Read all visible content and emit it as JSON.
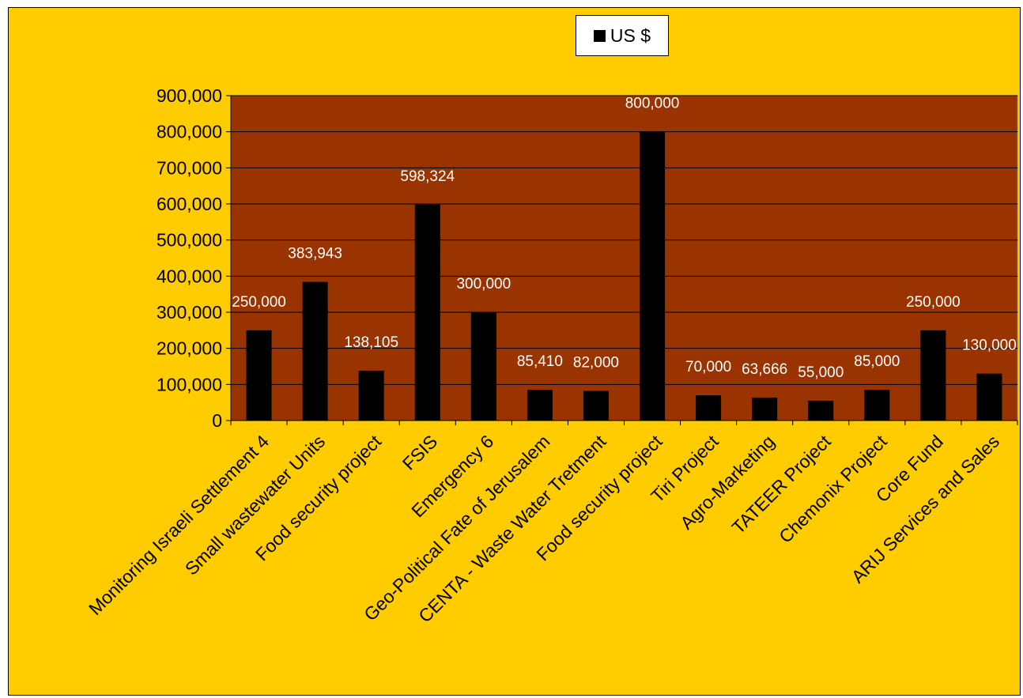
{
  "chart_data": {
    "type": "bar",
    "categories": [
      "Monitoring Israeli Settlement 4",
      "Small wastewater Units",
      "Food security project",
      "FSIS",
      "Emergency 6",
      "Geo-Political Fate of Jerusalem",
      "CENTA - Waste Water Tretment",
      "Food security project",
      "Tiri Project",
      "Agro-Marketing",
      "TATEER Project",
      "Chemonix Project",
      "Core Fund",
      "ARIJ Services and Sales"
    ],
    "series": [
      {
        "name": "US $",
        "values": [
          250000,
          383943,
          138105,
          598324,
          300000,
          85410,
          82000,
          800000,
          70000,
          63666,
          55000,
          85000,
          250000,
          130000
        ],
        "labels": [
          "250,000",
          "383,943",
          "138,105",
          "598,324",
          "300,000",
          "85,410",
          "82,000",
          "800,000",
          "70,000",
          "63,666",
          "55,000",
          "85,000",
          "250,000",
          "130,000"
        ]
      }
    ],
    "ylim": [
      0,
      900000
    ],
    "yticks": [
      "0",
      "100,000",
      "200,000",
      "300,000",
      "400,000",
      "500,000",
      "600,000",
      "700,000",
      "800,000",
      "900,000"
    ],
    "legend_position": "top",
    "grid": true,
    "colors": {
      "background": "#FFCC00",
      "plot_area": "#993300",
      "bars": "#000000",
      "data_labels": "#FFFFFF",
      "gridlines": "#000000"
    }
  }
}
